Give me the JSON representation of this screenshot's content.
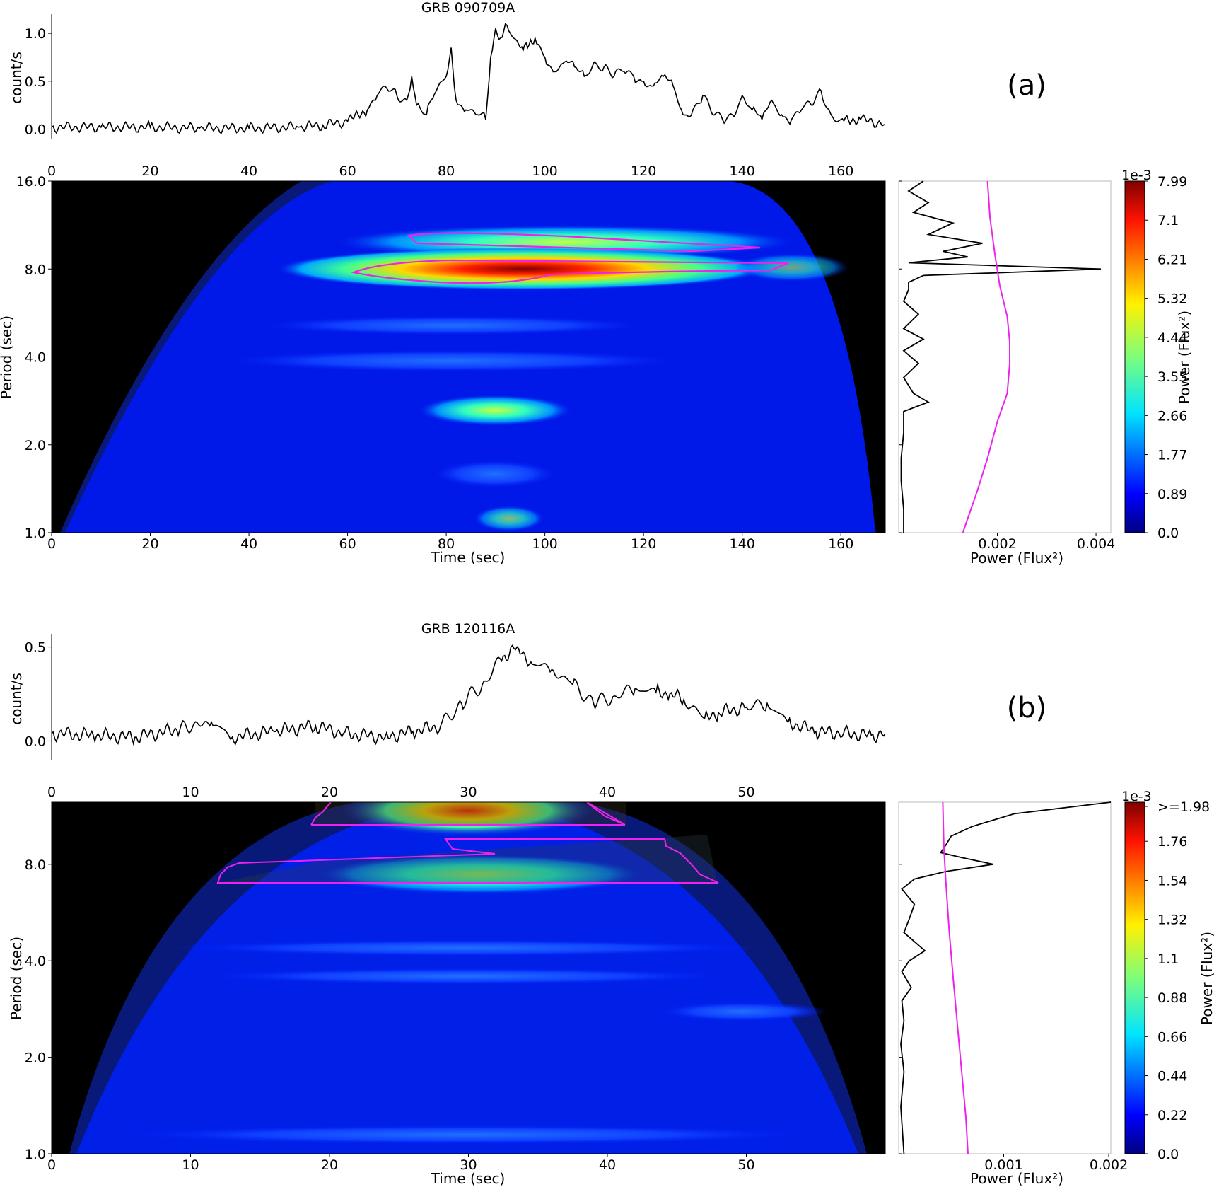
{
  "figure": {
    "panels": [
      {
        "id": "a",
        "panel_label": "(a)",
        "title": "GRB 090709A",
        "lightcurve": {
          "ylabel": "count/s",
          "yticks": [
            "0.0",
            "0.5",
            "1.0"
          ],
          "xticks": [
            "0",
            "20",
            "40",
            "60",
            "80",
            "100",
            "120",
            "140",
            "160"
          ]
        },
        "wavelet": {
          "xlabel": "Time (sec)",
          "ylabel": "Period (sec)",
          "yticks": [
            "1.0",
            "2.0",
            "4.0",
            "8.0",
            "16.0"
          ],
          "xticks": [
            "0",
            "20",
            "40",
            "60",
            "80",
            "100",
            "120",
            "140",
            "160"
          ]
        },
        "global": {
          "xlabel": "Power (Flux²)",
          "xticks": [
            "0.002",
            "0.004"
          ]
        },
        "colorbar": {
          "label": "Power (Flux²)",
          "scale_note": "1e-3",
          "ticks": [
            "0.0",
            "0.89",
            "1.77",
            "2.66",
            "3.55",
            "4.44",
            "5.32",
            "6.21",
            "7.1",
            "7.99"
          ]
        }
      },
      {
        "id": "b",
        "panel_label": "(b)",
        "title": "GRB 120116A",
        "lightcurve": {
          "ylabel": "count/s",
          "yticks": [
            "0.0",
            "0.5"
          ],
          "xticks": [
            "0",
            "10",
            "20",
            "30",
            "40",
            "50"
          ]
        },
        "wavelet": {
          "xlabel": "Time (sec)",
          "ylabel": "Period (sec)",
          "yticks": [
            "1.0",
            "2.0",
            "4.0",
            "8.0"
          ],
          "xticks": [
            "0",
            "10",
            "20",
            "30",
            "40",
            "50"
          ]
        },
        "global": {
          "xlabel": "Power (Flux²)",
          "xticks": [
            "0.001",
            "0.002"
          ]
        },
        "colorbar": {
          "label": "Power (Flux²)",
          "scale_note": "1e-3",
          "ticks": [
            "0.0",
            "0.22",
            "0.44",
            "0.66",
            "0.88",
            "1.1",
            "1.32",
            "1.54",
            "1.76",
            ">=1.98"
          ]
        }
      }
    ]
  },
  "chart_data": [
    {
      "type": "line",
      "title": "GRB 090709A",
      "xlabel": "",
      "ylabel": "count/s",
      "xlim": [
        0,
        169
      ],
      "ylim": [
        -0.1,
        1.2
      ],
      "x": [
        0,
        10,
        20,
        30,
        40,
        50,
        55,
        60,
        64,
        66,
        68,
        70,
        72,
        73,
        74,
        76,
        78,
        80,
        81,
        82,
        84,
        86,
        88,
        89,
        90,
        91,
        92,
        93,
        95,
        98,
        100,
        102,
        104,
        106,
        108,
        110,
        112,
        114,
        116,
        118,
        120,
        122,
        124,
        126,
        128,
        130,
        132,
        134,
        136,
        138,
        140,
        142,
        144,
        146,
        148,
        150,
        152,
        154,
        156,
        158,
        160,
        164,
        169
      ],
      "values": [
        0.02,
        0.02,
        0.02,
        0.01,
        0.01,
        0.02,
        0.04,
        0.08,
        0.2,
        0.35,
        0.42,
        0.35,
        0.3,
        0.55,
        0.25,
        0.15,
        0.4,
        0.55,
        0.85,
        0.3,
        0.2,
        0.15,
        0.1,
        0.75,
        1.05,
        0.95,
        1.1,
        1.0,
        0.85,
        0.95,
        0.75,
        0.6,
        0.7,
        0.65,
        0.55,
        0.7,
        0.65,
        0.55,
        0.6,
        0.55,
        0.5,
        0.45,
        0.55,
        0.45,
        0.15,
        0.2,
        0.35,
        0.15,
        0.1,
        0.15,
        0.35,
        0.2,
        0.1,
        0.3,
        0.15,
        0.1,
        0.2,
        0.25,
        0.4,
        0.15,
        0.1,
        0.1,
        0.05
      ],
      "series_color": "#000000"
    },
    {
      "type": "heatmap",
      "title": "",
      "xlabel": "Time (sec)",
      "ylabel": "Period (sec)",
      "xlim": [
        0,
        169
      ],
      "ylim": [
        1.0,
        16.0
      ],
      "yscale": "log2",
      "colormap": "jet",
      "color_range": [
        0.0,
        0.00799
      ],
      "features": [
        {
          "name": "peak",
          "t_center": 95,
          "period": 8.0,
          "power": 0.00799
        },
        {
          "name": "upper band",
          "t_center": 105,
          "period": 10.5,
          "power": 0.0045
        },
        {
          "name": "secondary",
          "t_center": 93,
          "period": 2.8,
          "power": 0.0035
        },
        {
          "name": "band",
          "t_center": 95,
          "period": 5.0,
          "power": 0.0012
        },
        {
          "name": "band",
          "t_center": 95,
          "period": 4.0,
          "power": 0.001
        }
      ],
      "cone_of_influence": true,
      "significance_contour_color": "#ee22ee"
    },
    {
      "type": "line",
      "title": "",
      "xlabel": "Power (Flux²)",
      "ylabel": "Period (sec)",
      "xlim": [
        0,
        0.0043
      ],
      "ylim": [
        1.0,
        16.0
      ],
      "series": [
        {
          "name": "",
          "color": "#000000",
          "period": [
            16.0,
            14.8,
            13.5,
            12.5,
            11.5,
            10.5,
            9.8,
            9.2,
            8.8,
            8.4,
            8.0,
            7.6,
            7.2,
            6.8,
            6.2,
            5.6,
            5.0,
            4.6,
            4.2,
            3.8,
            3.4,
            3.0,
            2.8,
            2.6,
            2.2,
            1.8,
            1.5,
            1.2,
            1.0
          ],
          "power": [
            0.0005,
            0.0002,
            0.0006,
            0.0003,
            0.0011,
            0.0006,
            0.0017,
            0.0009,
            0.0014,
            0.0002,
            0.0041,
            0.0005,
            0.0002,
            0.0002,
            0.0001,
            0.0004,
            0.0001,
            0.0005,
            0.0001,
            0.0004,
            0.0001,
            0.0003,
            0.0006,
            0.0001,
            0.0001,
            5e-05,
            5e-05,
            0.0001,
            0.0001
          ]
        },
        {
          "name": "",
          "color": "#ee22ee",
          "period": [
            16.0,
            12.0,
            9.0,
            7.0,
            5.5,
            4.5,
            3.8,
            3.0,
            2.4,
            1.8,
            1.4,
            1.0
          ],
          "power": [
            0.0018,
            0.00185,
            0.00195,
            0.00205,
            0.0022,
            0.00225,
            0.00225,
            0.0022,
            0.002,
            0.0018,
            0.0016,
            0.0013
          ]
        }
      ]
    },
    {
      "type": "line",
      "title": "GRB 120116A",
      "xlabel": "",
      "ylabel": "count/s",
      "xlim": [
        0,
        60
      ],
      "ylim": [
        -0.1,
        0.57
      ],
      "x": [
        0,
        3,
        6,
        9,
        11.5,
        13,
        16,
        19,
        21,
        24,
        26,
        28,
        29.5,
        31,
        32.5,
        33.5,
        34.5,
        36,
        37.5,
        39,
        40.5,
        42,
        43.5,
        44.5,
        45.5,
        47,
        48,
        50,
        51.5,
        53,
        55,
        57,
        59,
        60
      ],
      "values": [
        0.04,
        0.03,
        0.02,
        0.06,
        0.1,
        0.02,
        0.05,
        0.08,
        0.04,
        0.02,
        0.05,
        0.08,
        0.2,
        0.3,
        0.45,
        0.5,
        0.42,
        0.38,
        0.3,
        0.2,
        0.24,
        0.28,
        0.26,
        0.25,
        0.22,
        0.12,
        0.15,
        0.18,
        0.2,
        0.1,
        0.05,
        0.04,
        0.03,
        0.04
      ],
      "series_color": "#000000"
    },
    {
      "type": "heatmap",
      "title": "",
      "xlabel": "Time (sec)",
      "ylabel": "Period (sec)",
      "xlim": [
        0,
        60
      ],
      "ylim": [
        1.0,
        12.5
      ],
      "yscale": "log2",
      "colormap": "jet",
      "color_range": [
        0.0,
        0.00198
      ],
      "features": [
        {
          "name": "upper band",
          "t_center": 30,
          "period": 11.5,
          "power": 0.00198
        },
        {
          "name": "peak band",
          "t_center": 30,
          "period": 8.0,
          "power": 0.001
        },
        {
          "name": "band",
          "t_center": 30,
          "period": 3.0,
          "power": 0.0004
        }
      ],
      "cone_of_influence": true,
      "significance_contour_color": "#ee22ee"
    },
    {
      "type": "line",
      "title": "",
      "xlabel": "Power (Flux²)",
      "ylabel": "Period (sec)",
      "xlim": [
        0,
        0.00202
      ],
      "ylim": [
        1.0,
        12.5
      ],
      "series": [
        {
          "name": "",
          "color": "#000000",
          "period": [
            12.5,
            11.5,
            10.5,
            9.8,
            9.2,
            8.7,
            8.4,
            8.0,
            7.6,
            7.2,
            6.7,
            6.0,
            5.4,
            4.9,
            4.3,
            4.0,
            3.7,
            3.3,
            3.0,
            2.6,
            2.2,
            1.8,
            1.4,
            1.0
          ],
          "power": [
            0.00202,
            0.0011,
            0.0007,
            0.0005,
            0.00045,
            0.0004,
            0.0006,
            0.0009,
            0.00045,
            0.00015,
            3e-05,
            0.00015,
            0.0001,
            5e-05,
            0.00025,
            0.0001,
            3e-05,
            0.00012,
            3e-05,
            5e-05,
            2e-05,
            5e-05,
            2e-05,
            5e-05
          ]
        },
        {
          "name": "",
          "color": "#ee22ee",
          "period": [
            12.5,
            9.0,
            7.0,
            5.0,
            3.5,
            2.5,
            1.8,
            1.3,
            1.0
          ],
          "power": [
            0.00042,
            0.00043,
            0.00045,
            0.00048,
            0.00052,
            0.00056,
            0.0006,
            0.00064,
            0.00066
          ]
        }
      ]
    }
  ]
}
